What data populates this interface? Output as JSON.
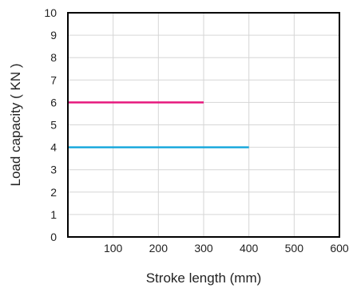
{
  "chart_data": {
    "type": "line",
    "title": "",
    "xlabel": "Stroke length (mm)",
    "ylabel": "Load capacity ( KN )",
    "xlim": [
      0,
      600
    ],
    "ylim": [
      0,
      10
    ],
    "x_ticks": [
      100,
      200,
      300,
      400,
      500,
      600
    ],
    "y_ticks": [
      0,
      1,
      2,
      3,
      4,
      5,
      6,
      7,
      8,
      9,
      10
    ],
    "grid": true,
    "series": [
      {
        "color": "#e6197e",
        "x": [
          0,
          300
        ],
        "y": [
          6,
          6
        ]
      },
      {
        "color": "#1ba9dd",
        "x": [
          0,
          400
        ],
        "y": [
          4,
          4
        ]
      }
    ]
  }
}
